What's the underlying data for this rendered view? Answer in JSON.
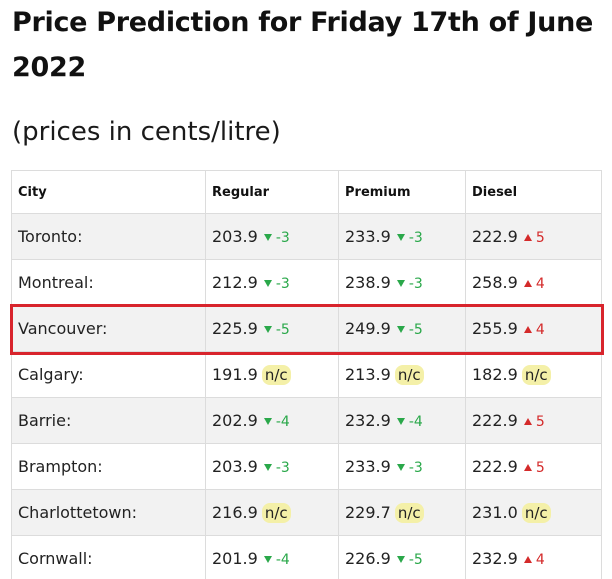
{
  "title": "Price Prediction for Friday 17th of June 2022",
  "subtitle": "(prices in cents/litre)",
  "table": {
    "headers": [
      "City",
      "Regular",
      "Premium",
      "Diesel"
    ],
    "rows": [
      {
        "city": "Toronto:",
        "regular": {
          "price": "203.9",
          "dir": "down",
          "change": "-3"
        },
        "premium": {
          "price": "233.9",
          "dir": "down",
          "change": "-3"
        },
        "diesel": {
          "price": "222.9",
          "dir": "up",
          "change": "5"
        }
      },
      {
        "city": "Montreal:",
        "regular": {
          "price": "212.9",
          "dir": "down",
          "change": "-3"
        },
        "premium": {
          "price": "238.9",
          "dir": "down",
          "change": "-3"
        },
        "diesel": {
          "price": "258.9",
          "dir": "up",
          "change": "4"
        }
      },
      {
        "city": "Vancouver:",
        "regular": {
          "price": "225.9",
          "dir": "down",
          "change": "-5"
        },
        "premium": {
          "price": "249.9",
          "dir": "down",
          "change": "-5"
        },
        "diesel": {
          "price": "255.9",
          "dir": "up",
          "change": "4"
        }
      },
      {
        "city": "Calgary:",
        "regular": {
          "price": "191.9",
          "dir": "none",
          "change": "n/c"
        },
        "premium": {
          "price": "213.9",
          "dir": "none",
          "change": "n/c"
        },
        "diesel": {
          "price": "182.9",
          "dir": "none",
          "change": "n/c"
        }
      },
      {
        "city": "Barrie:",
        "regular": {
          "price": "202.9",
          "dir": "down",
          "change": "-4"
        },
        "premium": {
          "price": "232.9",
          "dir": "down",
          "change": "-4"
        },
        "diesel": {
          "price": "222.9",
          "dir": "up",
          "change": "5"
        }
      },
      {
        "city": "Brampton:",
        "regular": {
          "price": "203.9",
          "dir": "down",
          "change": "-3"
        },
        "premium": {
          "price": "233.9",
          "dir": "down",
          "change": "-3"
        },
        "diesel": {
          "price": "222.9",
          "dir": "up",
          "change": "5"
        }
      },
      {
        "city": "Charlottetown:",
        "regular": {
          "price": "216.9",
          "dir": "none",
          "change": "n/c"
        },
        "premium": {
          "price": "229.7",
          "dir": "none",
          "change": "n/c"
        },
        "diesel": {
          "price": "231.0",
          "dir": "none",
          "change": "n/c"
        }
      },
      {
        "city": "Cornwall:",
        "regular": {
          "price": "201.9",
          "dir": "down",
          "change": "-4"
        },
        "premium": {
          "price": "226.9",
          "dir": "down",
          "change": "-5"
        },
        "diesel": {
          "price": "232.9",
          "dir": "up",
          "change": "4"
        }
      }
    ]
  },
  "highlighted_row": "Vancouver:",
  "colors": {
    "decrease": "#2aa84a",
    "increase": "#d42a2a",
    "no_change_bg": "#f4f0a8",
    "highlight_border": "#d8242c"
  },
  "icons": {
    "decrease": "triangle-down-icon",
    "increase": "triangle-up-icon"
  }
}
